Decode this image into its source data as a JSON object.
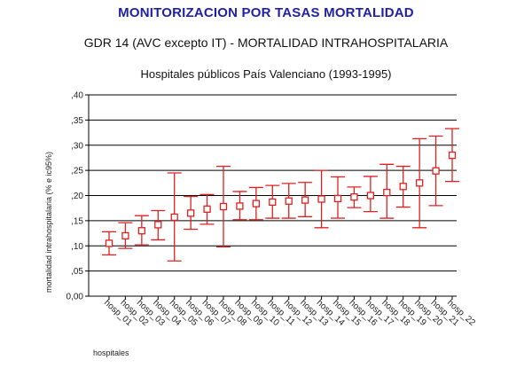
{
  "header": {
    "title": "MONITORIZACION POR TASAS MORTALIDAD",
    "subtitle": "GDR 14 (AVC excepto IT) - MORTALIDAD INTRAHOSPITALARIA",
    "subtitle2": "Hospitales públicos País Valenciano (1993-1995)"
  },
  "chart_data": {
    "type": "scatter",
    "title": "Hospitales públicos País Valenciano (1993-1995)",
    "xlabel": "hospitales",
    "ylabel": "mortalidad intrahospitalaria (% e ic95%)",
    "ylim": [
      0,
      0.4
    ],
    "y_ticks": [
      ",40",
      ",35",
      ",30",
      ",25",
      ",20",
      ",15",
      ",10",
      ",05",
      "0,00"
    ],
    "grid": true,
    "marker": "open-square",
    "color": "#e02020",
    "categories": [
      "hosp_01",
      "hosp_02",
      "hosp_03",
      "hosp_04",
      "hosp_05",
      "hosp_06",
      "hosp_07",
      "hosp_08",
      "hosp_09",
      "hosp_10",
      "hosp_11",
      "hosp_12",
      "hosp_13",
      "hosp_14",
      "hosp_15",
      "hosp_16",
      "hosp_17",
      "hosp_18",
      "hosp_19",
      "hosp_20",
      "hosp_21",
      "hosp_22"
    ],
    "values": [
      0.105,
      0.12,
      0.13,
      0.142,
      0.157,
      0.165,
      0.173,
      0.178,
      0.179,
      0.184,
      0.187,
      0.189,
      0.191,
      0.193,
      0.194,
      0.197,
      0.2,
      0.206,
      0.218,
      0.225,
      0.249,
      0.28
    ],
    "ci_lower": [
      0.082,
      0.095,
      0.102,
      0.112,
      0.07,
      0.133,
      0.143,
      0.098,
      0.152,
      0.152,
      0.155,
      0.155,
      0.158,
      0.136,
      0.155,
      0.176,
      0.168,
      0.155,
      0.177,
      0.136,
      0.18,
      0.228
    ],
    "ci_upper": [
      0.128,
      0.146,
      0.16,
      0.17,
      0.245,
      0.198,
      0.202,
      0.258,
      0.208,
      0.216,
      0.22,
      0.224,
      0.226,
      0.25,
      0.237,
      0.217,
      0.238,
      0.262,
      0.258,
      0.313,
      0.318,
      0.333
    ]
  }
}
